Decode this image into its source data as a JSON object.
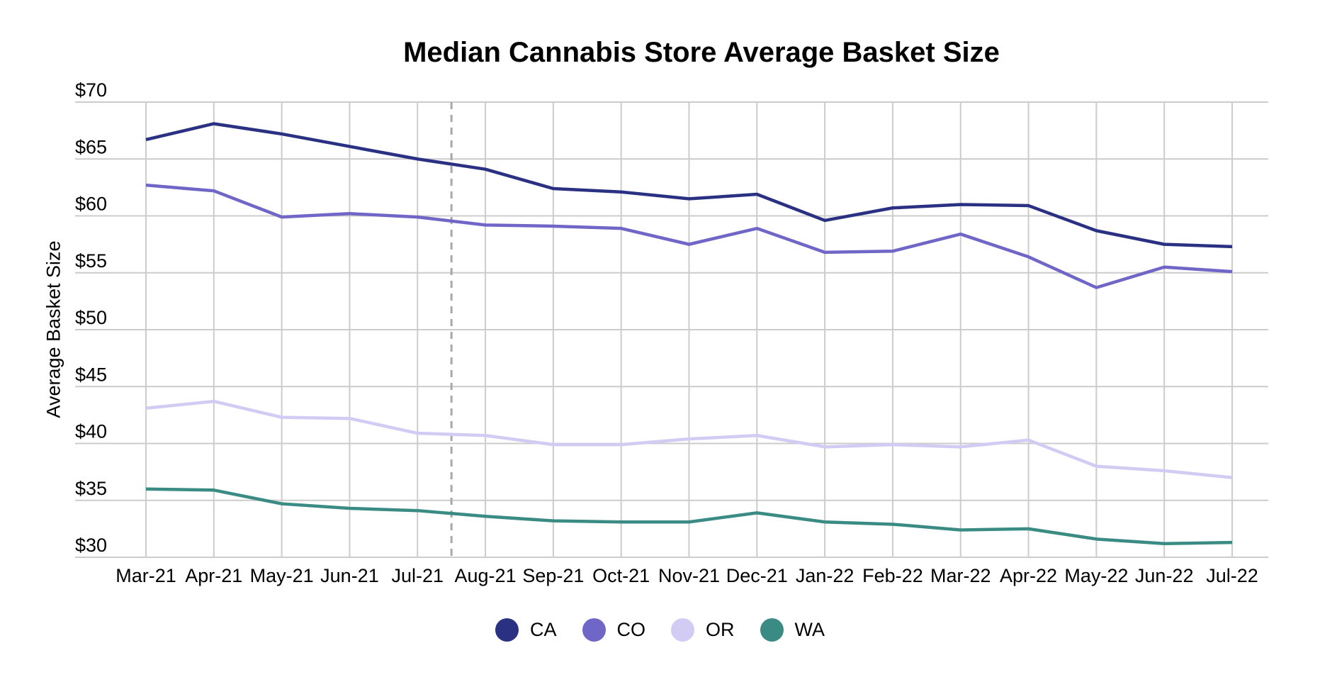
{
  "chart_data": {
    "type": "line",
    "title": "Median Cannabis Store Average Basket Size",
    "ylabel": "Average Basket Size",
    "xlabel": "",
    "x_categories": [
      "Mar-21",
      "Apr-21",
      "May-21",
      "Jun-21",
      "Jul-21",
      "Aug-21",
      "Sep-21",
      "Oct-21",
      "Nov-21",
      "Dec-21",
      "Jan-22",
      "Feb-22",
      "Mar-22",
      "Apr-22",
      "May-22",
      "Jun-22",
      "Jul-22"
    ],
    "y_ticks": [
      70,
      65,
      60,
      55,
      50,
      45,
      40,
      35,
      30
    ],
    "y_tick_prefix": "$",
    "ylim": [
      30,
      70
    ],
    "grid": true,
    "legend_position": "bottom",
    "annotation": {
      "type": "dashed-vertical-line",
      "between_categories": [
        "Jul-21",
        "Aug-21"
      ],
      "x_index": 4.5,
      "color": "#a8a8a8"
    },
    "colors": {
      "gridline": "#cccccc",
      "text": "#000000",
      "background": "#ffffff"
    },
    "series": [
      {
        "name": "CA",
        "color": "#2b3182",
        "values": [
          66.7,
          68.1,
          67.2,
          66.1,
          65.0,
          64.1,
          62.4,
          62.1,
          61.5,
          61.9,
          59.6,
          60.7,
          61.0,
          60.9,
          58.7,
          57.5,
          57.3
        ]
      },
      {
        "name": "CO",
        "color": "#7066c7",
        "values": [
          62.7,
          62.2,
          59.9,
          60.2,
          59.9,
          59.2,
          59.1,
          58.9,
          57.5,
          58.9,
          56.8,
          56.9,
          58.4,
          56.4,
          53.7,
          55.5,
          55.1
        ]
      },
      {
        "name": "OR",
        "color": "#d2ccf5",
        "values": [
          43.1,
          43.7,
          42.3,
          42.2,
          40.9,
          40.7,
          39.9,
          39.9,
          40.4,
          40.7,
          39.7,
          39.9,
          39.7,
          40.3,
          38.0,
          37.6,
          37.0
        ]
      },
      {
        "name": "WA",
        "color": "#398b83",
        "values": [
          36.0,
          35.9,
          34.7,
          34.3,
          34.1,
          33.6,
          33.2,
          33.1,
          33.1,
          33.9,
          33.1,
          32.9,
          32.4,
          32.5,
          31.6,
          31.2,
          31.3
        ]
      }
    ]
  }
}
